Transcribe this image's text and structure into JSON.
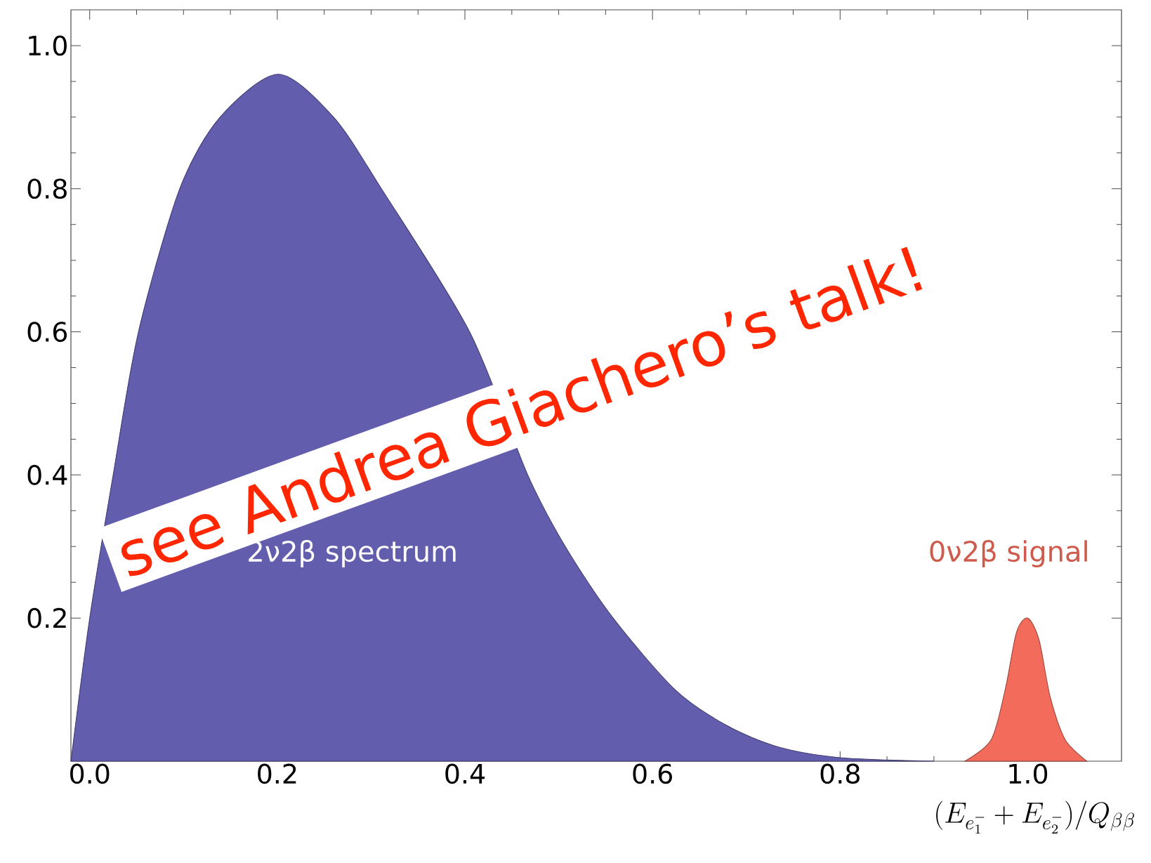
{
  "chart_data": {
    "type": "area",
    "xlabel": "(E_{e_1^-}+E_{e_2^-})/Q_{\\beta\\beta}",
    "xlim": [
      -0.02,
      1.1
    ],
    "ylim": [
      0,
      1.05
    ],
    "xticks": [
      {
        "value": 0,
        "label": "0.0"
      },
      0.2,
      0.4,
      0.6,
      0.8,
      {
        "value": 1,
        "label": "1.0"
      }
    ],
    "yticks": [
      0.2,
      0.4,
      0.6,
      0.8,
      {
        "value": 1,
        "label": "1.0"
      }
    ],
    "series": [
      {
        "name": "2ν2β spectrum",
        "color": "#635dae",
        "x": [
          -0.02,
          0.0,
          0.025,
          0.052,
          0.096,
          0.139,
          0.201,
          0.26,
          0.311,
          0.405,
          0.467,
          0.507,
          0.558,
          0.624,
          0.679,
          0.734,
          0.8,
          0.9
        ],
        "values": [
          0,
          0.2,
          0.4,
          0.6,
          0.8,
          0.9,
          0.96,
          0.9,
          0.8,
          0.6,
          0.4,
          0.3,
          0.2,
          0.1,
          0.05,
          0.02,
          0.005,
          0
        ]
      },
      {
        "name": "0ν2β signal",
        "color": "#f26b5b",
        "x": [
          0.933,
          0.961,
          0.976,
          0.988,
          1.0,
          1.012,
          1.024,
          1.04,
          1.063
        ],
        "values": [
          0,
          0.03,
          0.1,
          0.18,
          0.2,
          0.17,
          0.09,
          0.03,
          0
        ]
      }
    ],
    "annotations": [
      "see Andrea Giachero’s talk!"
    ]
  }
}
